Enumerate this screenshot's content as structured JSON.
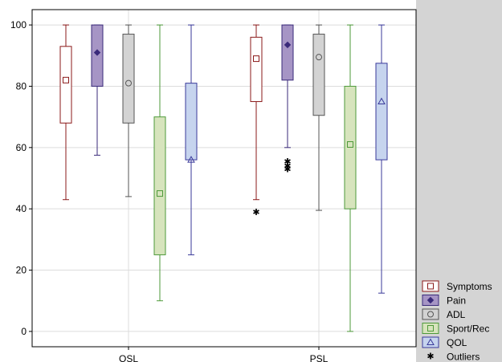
{
  "chart_data": {
    "type": "boxplot",
    "categories": [
      "OSL",
      "PSL"
    ],
    "ylim": [
      -5,
      105
    ],
    "yticks": [
      0,
      20,
      40,
      60,
      80,
      100
    ],
    "grid": true,
    "legend_placement": "right-bottom",
    "series": [
      {
        "name": "Symptoms",
        "marker": "square",
        "fill": "#ffffff",
        "stroke": "#8b1a1a",
        "boxes": [
          {
            "category": "OSL",
            "min": 43,
            "q1": 68,
            "median": 82,
            "q3": 93,
            "max": 100,
            "outliers": []
          },
          {
            "category": "PSL",
            "min": 43,
            "q1": 75,
            "median": 89,
            "q3": 96,
            "max": 100,
            "outliers": [
              39
            ]
          }
        ]
      },
      {
        "name": "Pain",
        "marker": "diamond",
        "fill": "#a695c5",
        "stroke": "#3a2a7a",
        "boxes": [
          {
            "category": "OSL",
            "min": 57.5,
            "q1": 80,
            "median": 91,
            "q3": 100,
            "max": 100,
            "outliers": []
          },
          {
            "category": "PSL",
            "min": 60,
            "q1": 82,
            "median": 93.5,
            "q3": 100,
            "max": 100,
            "outliers": [
              53,
              54,
              55.5
            ]
          }
        ]
      },
      {
        "name": "ADL",
        "marker": "circle",
        "fill": "#d3d3d3",
        "stroke": "#555555",
        "boxes": [
          {
            "category": "OSL",
            "min": 44,
            "q1": 68,
            "median": 81,
            "q3": 97,
            "max": 100,
            "outliers": []
          },
          {
            "category": "PSL",
            "min": 39.5,
            "q1": 70.5,
            "median": 89.5,
            "q3": 97,
            "max": 100,
            "outliers": []
          }
        ]
      },
      {
        "name": "Sport/Rec",
        "marker": "square",
        "fill": "#d7e4bd",
        "stroke": "#4e9a3a",
        "boxes": [
          {
            "category": "OSL",
            "min": 10,
            "q1": 25,
            "median": 45,
            "q3": 70,
            "max": 100,
            "outliers": []
          },
          {
            "category": "PSL",
            "min": 0,
            "q1": 40,
            "median": 61,
            "q3": 80,
            "max": 100,
            "outliers": []
          }
        ]
      },
      {
        "name": "QOL",
        "marker": "triangle",
        "fill": "#c6d4ee",
        "stroke": "#3a3a9a",
        "boxes": [
          {
            "category": "OSL",
            "min": 25,
            "q1": 56,
            "median": 56,
            "q3": 81,
            "max": 100,
            "outliers": []
          },
          {
            "category": "PSL",
            "min": 12.5,
            "q1": 56,
            "median": 75,
            "q3": 87.5,
            "max": 100,
            "outliers": []
          }
        ]
      }
    ],
    "outliers_legend": "Outliers"
  },
  "colors": {
    "panel_background": "#d4d4d4",
    "plot_background": "#ffffff",
    "grid": "#dcdcdc"
  }
}
